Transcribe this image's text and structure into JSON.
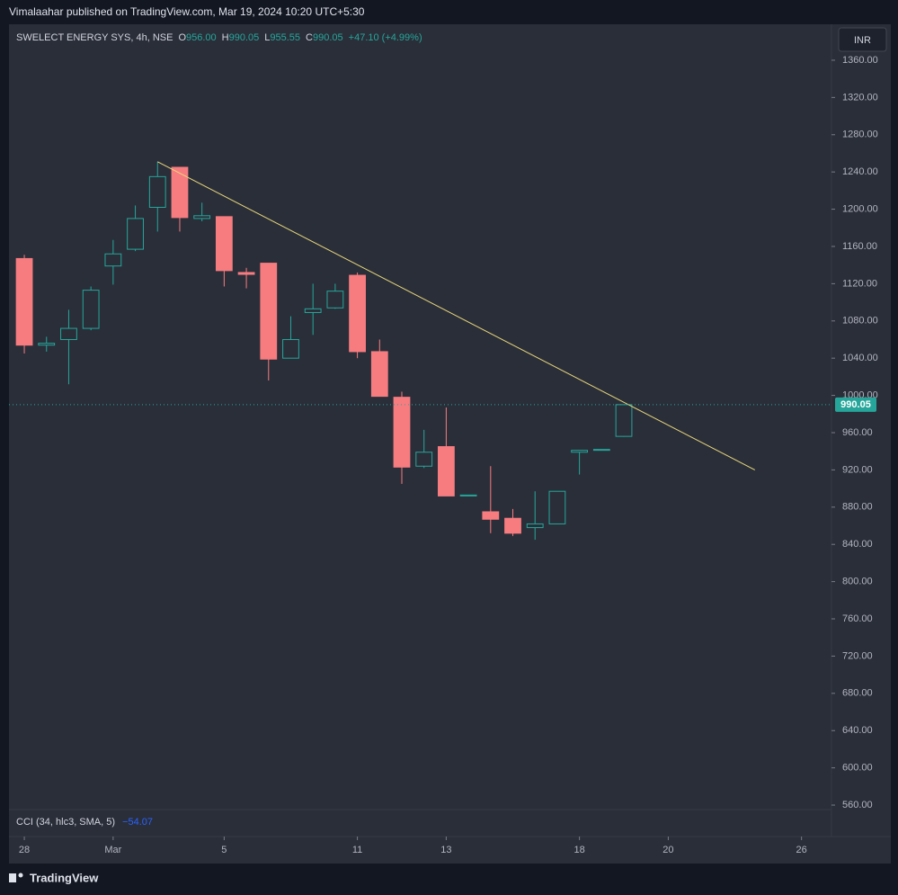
{
  "header": {
    "published": "Vimalaahar published on TradingView.com, Mar 19, 2024 10:20 UTC+5:30",
    "symbol": "SWELECT ENERGY SYS, 4h, NSE",
    "o_label": "O",
    "o": "956.00",
    "h_label": "H",
    "h": "990.05",
    "l_label": "L",
    "l": "955.55",
    "c_label": "C",
    "c": "990.05",
    "change": "+47.10 (+4.99%)",
    "currency": "INR"
  },
  "indicator": {
    "name": "CCI (34, hlc3, SMA, 5)",
    "value": "−54.07"
  },
  "footer": {
    "brand": "TradingView"
  },
  "chart_data": {
    "type": "candlestick",
    "x": [
      0,
      1,
      2,
      3,
      4,
      5,
      6,
      7,
      8,
      9,
      10,
      11,
      12,
      13,
      14,
      15,
      16,
      17,
      18,
      19,
      20,
      21,
      22,
      23,
      24,
      25,
      26,
      27
    ],
    "open": [
      1147,
      1054,
      1060,
      1072,
      1139,
      1157,
      1202,
      1245,
      1190,
      1192,
      1132,
      1142,
      1040,
      1089,
      1094,
      1129,
      1047,
      998,
      924,
      945,
      892,
      875,
      868,
      858,
      862,
      939,
      941,
      956
    ],
    "high": [
      1151,
      1063,
      1092,
      1117,
      1167,
      1204,
      1251,
      1245,
      1207,
      1192,
      1137,
      1142,
      1085,
      1120,
      1120,
      1132,
      1060,
      1004,
      963,
      987,
      893,
      924,
      878,
      897,
      897,
      941,
      942,
      990.05
    ],
    "low": [
      1045,
      1047,
      1012,
      1070,
      1119,
      1155,
      1176,
      1176,
      1187,
      1117,
      1115,
      1016,
      1040,
      1065,
      1093,
      1040,
      999,
      905,
      922,
      892,
      892,
      852,
      849,
      845,
      862,
      915,
      941,
      955.55
    ],
    "close": [
      1054,
      1056,
      1072,
      1113,
      1152,
      1190,
      1235,
      1191,
      1193,
      1134,
      1130,
      1039,
      1060,
      1093,
      1112,
      1047,
      999,
      923,
      939,
      892,
      893,
      867,
      852,
      862,
      897,
      941,
      942,
      990.05
    ],
    "up_color": "#26a69a",
    "down_color": "#f77c80",
    "xlim": [
      -0.69,
      36.35
    ],
    "xticks": [
      {
        "value": 0,
        "label": "28"
      },
      {
        "value": 4,
        "label": "Mar"
      },
      {
        "value": 9,
        "label": "5"
      },
      {
        "value": 15,
        "label": "11"
      },
      {
        "value": 19,
        "label": "13"
      },
      {
        "value": 25,
        "label": "18"
      },
      {
        "value": 29,
        "label": "20"
      },
      {
        "value": 35,
        "label": "26"
      }
    ],
    "ylim": [
      555.2,
      1398.6
    ],
    "yticks": [
      {
        "value": 1360,
        "label": "1360.00"
      },
      {
        "value": 1320,
        "label": "1320.00"
      },
      {
        "value": 1280,
        "label": "1280.00"
      },
      {
        "value": 1240,
        "label": "1240.00"
      },
      {
        "value": 1200,
        "label": "1200.00"
      },
      {
        "value": 1160,
        "label": "1160.00"
      },
      {
        "value": 1120,
        "label": "1120.00"
      },
      {
        "value": 1080,
        "label": "1080.00"
      },
      {
        "value": 1040,
        "label": "1040.00"
      },
      {
        "value": 1000,
        "label": "1000.00"
      },
      {
        "value": 960,
        "label": "960.00"
      },
      {
        "value": 920,
        "label": "920.00"
      },
      {
        "value": 880,
        "label": "880.00"
      },
      {
        "value": 840,
        "label": "840.00"
      },
      {
        "value": 800,
        "label": "800.00"
      },
      {
        "value": 760,
        "label": "760.00"
      },
      {
        "value": 720,
        "label": "720.00"
      },
      {
        "value": 680,
        "label": "680.00"
      },
      {
        "value": 640,
        "label": "640.00"
      },
      {
        "value": 600,
        "label": "600.00"
      },
      {
        "value": 560,
        "label": "560.00"
      }
    ],
    "last_price": {
      "value": 990.05,
      "label": "990.05",
      "color": "#26a69a"
    },
    "trendline": {
      "x": [
        6,
        32.9
      ],
      "values": [
        1251,
        920
      ],
      "color": "#e8d77a"
    }
  }
}
